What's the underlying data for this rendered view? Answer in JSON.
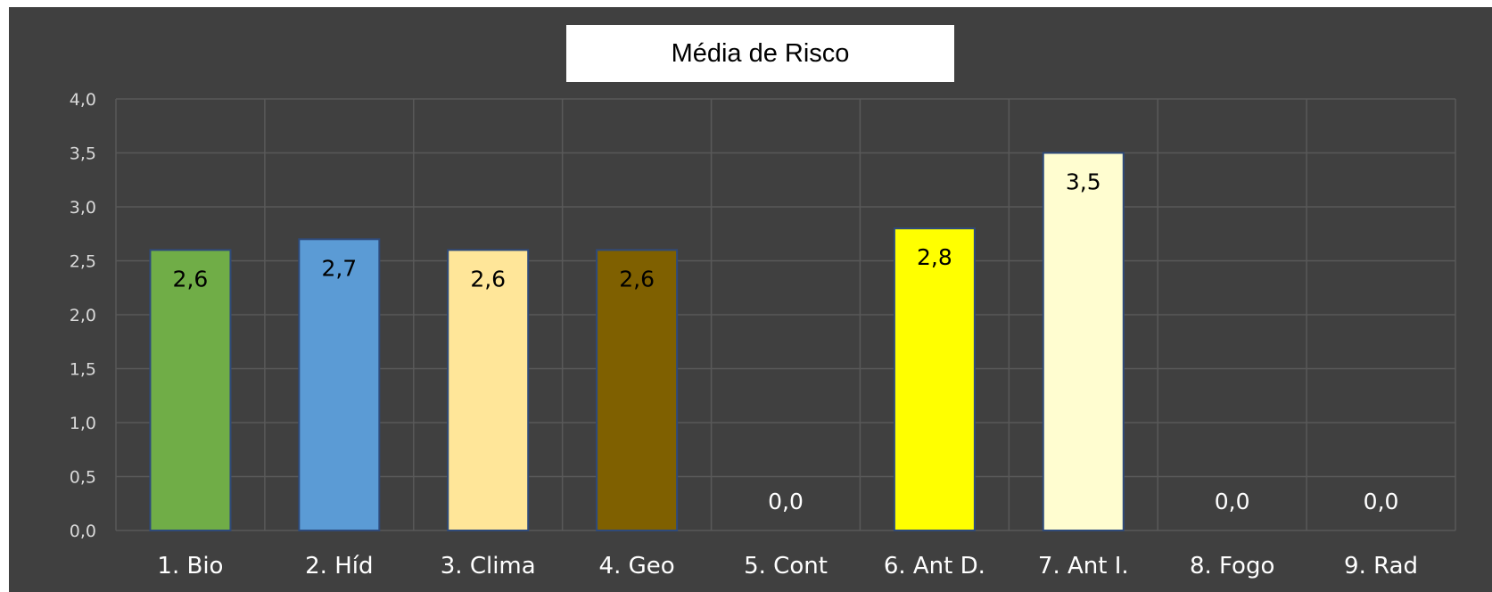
{
  "chart_data": {
    "type": "bar",
    "title": "Média de Risco",
    "categories": [
      "1. Bio",
      "2. Híd",
      "3. Clima",
      "4. Geo",
      "5. Cont",
      "6. Ant D.",
      "7. Ant I.",
      "8. Fogo",
      "9. Rad"
    ],
    "values": [
      2.6,
      2.7,
      2.6,
      2.6,
      0.0,
      2.8,
      3.5,
      0.0,
      0.0
    ],
    "value_labels": [
      "2,6",
      "2,7",
      "2,6",
      "2,6",
      "0,0",
      "2,8",
      "3,5",
      "0,0",
      "0,0"
    ],
    "bar_colors": [
      "#70ad47",
      "#5b9bd5",
      "#ffe699",
      "#7f6000",
      "#404040",
      "#ffff00",
      "#fffdd0",
      "#404040",
      "#404040"
    ],
    "ylim": [
      0,
      4.0
    ],
    "yticks": [
      "0,0",
      "0,5",
      "1,0",
      "1,5",
      "2,0",
      "2,5",
      "3,0",
      "3,5",
      "4,0"
    ],
    "grid": true,
    "xlabel": "",
    "ylabel": "",
    "background": "#404040",
    "grid_color": "#595959"
  }
}
